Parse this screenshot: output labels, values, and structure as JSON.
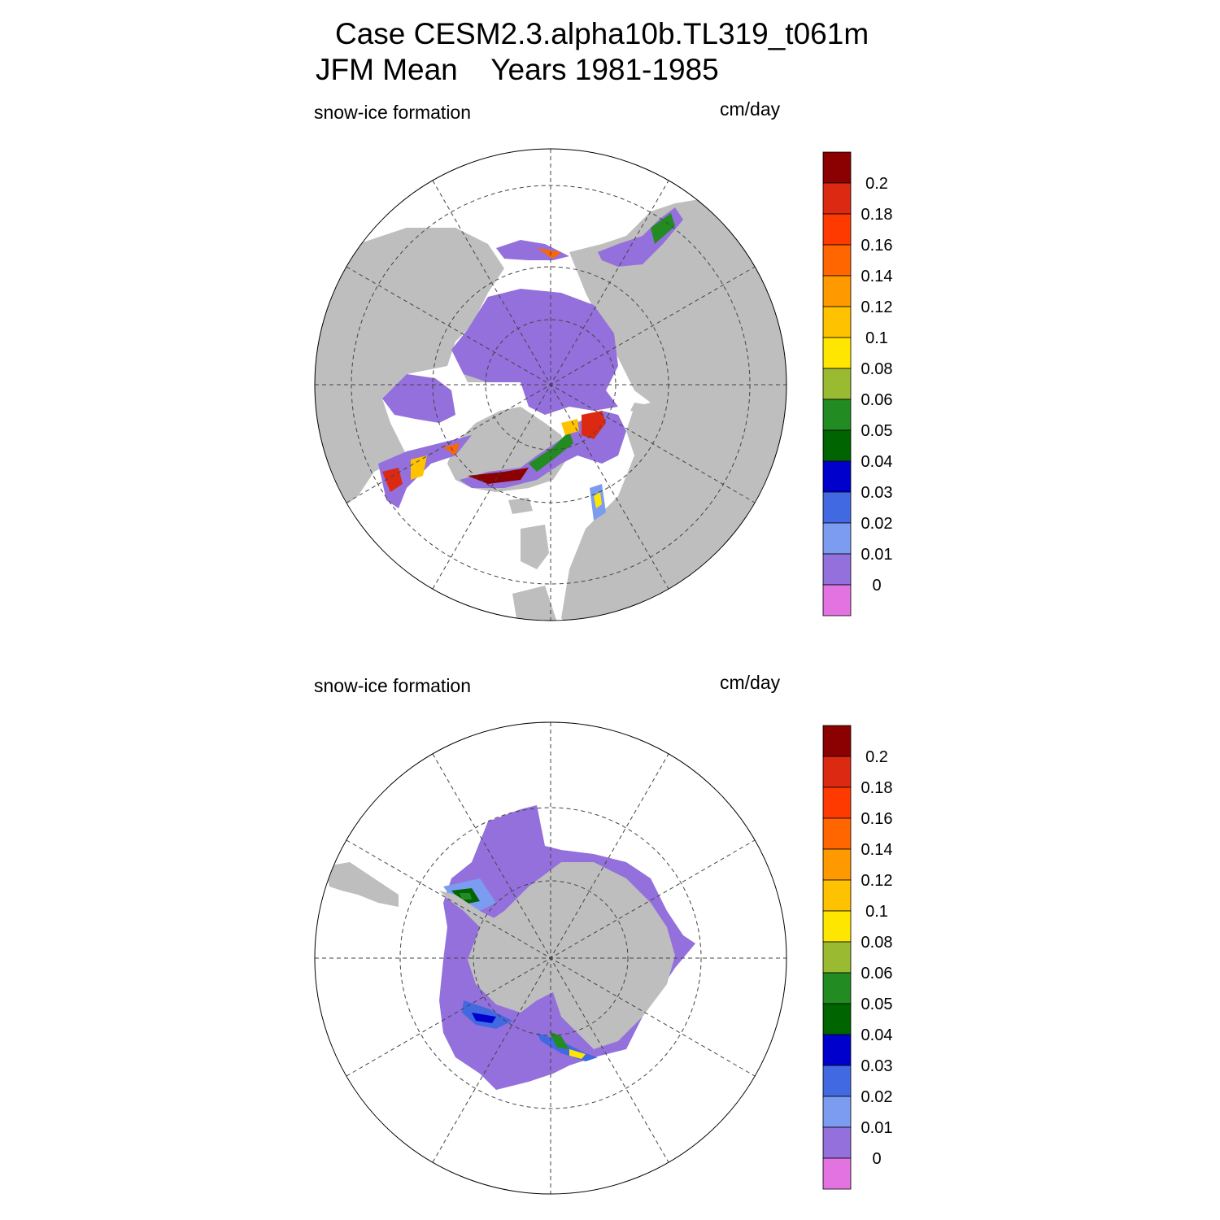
{
  "title_line1": "Case CESM2.3.alpha10b.TL319_t061m",
  "title_line2": "JFM Mean    Years 1981-1985",
  "colors": {
    "land": "#bebebe",
    "ice_zero": "#9370db",
    "background": "#ffffff"
  },
  "panels": [
    {
      "hemisphere": "north",
      "left_label": "snow-ice formation",
      "units": "cm/day"
    },
    {
      "hemisphere": "south",
      "left_label": "snow-ice formation",
      "units": "cm/day"
    }
  ],
  "colorbar": {
    "labels": [
      "0.2",
      "0.18",
      "0.16",
      "0.14",
      "0.12",
      "0.1",
      "0.08",
      "0.06",
      "0.05",
      "0.04",
      "0.03",
      "0.02",
      "0.01",
      "0"
    ],
    "colors": [
      "#8b0000",
      "#dc2a12",
      "#ff3a00",
      "#ff6600",
      "#ff9900",
      "#ffc200",
      "#ffe600",
      "#9aba32",
      "#228b22",
      "#006400",
      "#0000cd",
      "#4169e1",
      "#7b9cf0",
      "#9370db",
      "#e373e0"
    ]
  }
}
